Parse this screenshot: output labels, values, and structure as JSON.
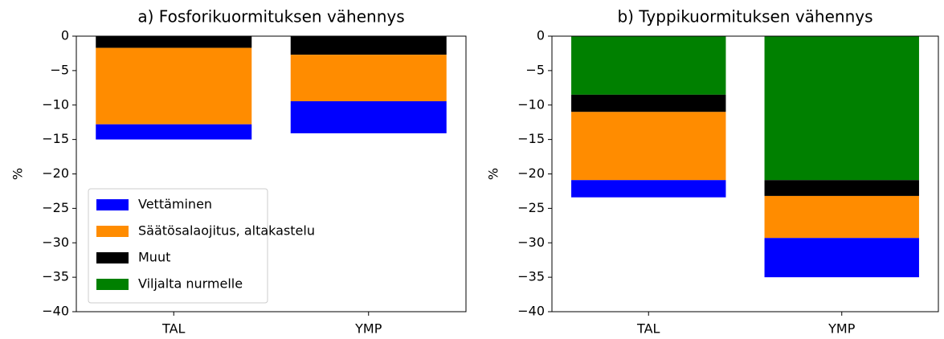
{
  "chart_data": [
    {
      "type": "bar",
      "stacked": true,
      "title": "a) Fosforikuormituksen vähennys",
      "ylabel": "%",
      "categories": [
        "TAL",
        "YMP"
      ],
      "legend": "lower left",
      "series": [
        {
          "name": "Vettäminen",
          "color": "#0000ff",
          "values": [
            -2.2,
            -4.65
          ]
        },
        {
          "name": "Säätösalaojitus, altakastelu",
          "color": "#ff8c00",
          "values": [
            -11.1,
            -6.75
          ]
        },
        {
          "name": "Muut",
          "color": "#000000",
          "values": [
            -1.7,
            -2.7
          ]
        },
        {
          "name": "Viljalta nurmelle",
          "color": "#008000",
          "values": [
            0,
            0
          ]
        }
      ],
      "ylim": [
        -40,
        0
      ],
      "yticks": [
        {
          "value": -40,
          "label": "−40"
        },
        {
          "value": -35,
          "label": "−35"
        },
        {
          "value": -30,
          "label": "−30"
        },
        {
          "value": -25,
          "label": "−25"
        },
        {
          "value": -20,
          "label": "−20"
        },
        {
          "value": -15,
          "label": "−15"
        },
        {
          "value": -10,
          "label": "−10"
        },
        {
          "value": -5,
          "label": "−5"
        },
        0
      ]
    },
    {
      "type": "bar",
      "stacked": true,
      "title": "b) Typpikuormituksen vähennys",
      "ylabel": "%",
      "categories": [
        "TAL",
        "YMP"
      ],
      "series": [
        {
          "color": "#0000ff",
          "values": [
            -2.5,
            -5.7
          ]
        },
        {
          "color": "#ff8c00",
          "values": [
            -9.9,
            -6.1
          ]
        },
        {
          "color": "#000000",
          "values": [
            -2.5,
            -2.3
          ]
        },
        {
          "color": "#008000",
          "values": [
            -8.5,
            -20.9
          ]
        }
      ],
      "ylim": [
        -40,
        0
      ],
      "yticks": [
        {
          "value": -40,
          "label": "−40"
        },
        {
          "value": -35,
          "label": "−35"
        },
        {
          "value": -30,
          "label": "−30"
        },
        {
          "value": -25,
          "label": "−25"
        },
        {
          "value": -20,
          "label": "−20"
        },
        {
          "value": -15,
          "label": "−15"
        },
        {
          "value": -10,
          "label": "−10"
        },
        {
          "value": -5,
          "label": "−5"
        },
        0
      ]
    }
  ]
}
